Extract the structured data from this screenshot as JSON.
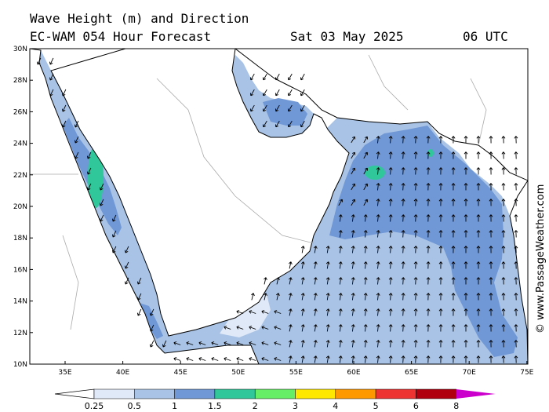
{
  "header": {
    "line1": "Wave Height (m) and Direction",
    "line2": "EC-WAM 054 Hour Forecast",
    "date": "Sat 03 May 2025",
    "time": "06 UTC"
  },
  "credit": "© www.PassageWeather.com",
  "axes": {
    "lat_labels": [
      "30N",
      "28N",
      "26N",
      "24N",
      "22N",
      "20N",
      "18N",
      "16N",
      "14N",
      "12N",
      "10N"
    ],
    "lon_labels": [
      "35E",
      "40E",
      "45E",
      "50E",
      "55E",
      "60E",
      "65E",
      "70E",
      "75E"
    ]
  },
  "legend": {
    "labels": [
      "0.25",
      "0.5",
      "1",
      "1.5",
      "2",
      "3",
      "4",
      "5",
      "6",
      "8"
    ],
    "colors": [
      "#dfe9f7",
      "#a9c3e6",
      "#7098d6",
      "#30c89a",
      "#66ee66",
      "#ffe800",
      "#ff9900",
      "#ee3333",
      "#b00010",
      "#cc00cc"
    ]
  },
  "colors": {
    "wave_light": "#dfe9f7",
    "wave_mid": "#a9c3e6",
    "wave_dark": "#7098d6",
    "wave_green": "#30c89a",
    "land": "#ffffff",
    "coast": "#000000",
    "border": "#aaaaaa"
  }
}
